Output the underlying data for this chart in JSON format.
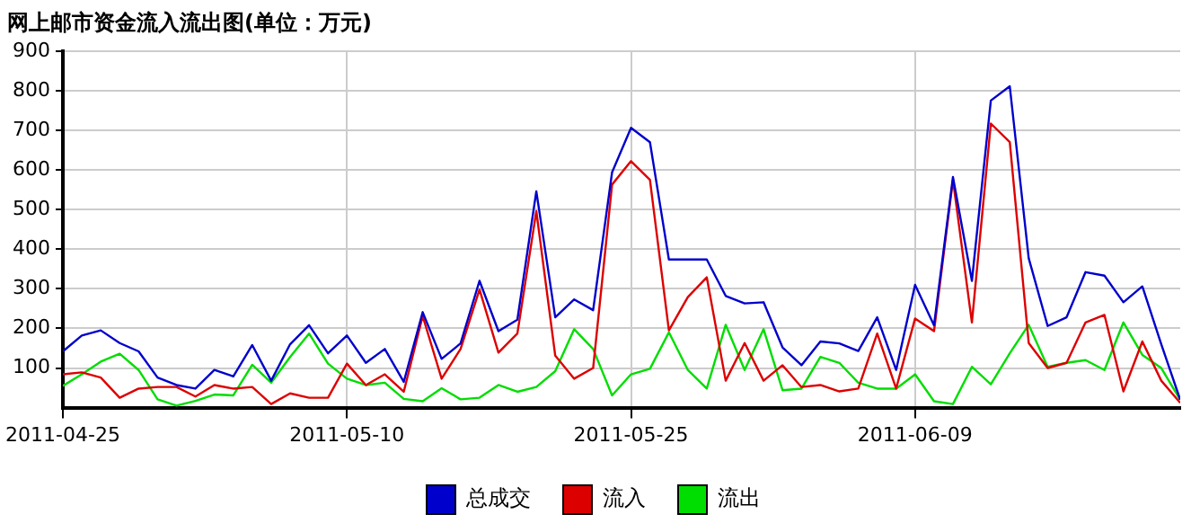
{
  "chart_data": {
    "type": "line",
    "title": "网上邮市资金流入流出图(单位：万元)",
    "x": [
      "2011-04-25",
      "2011-04-26",
      "2011-04-27",
      "2011-04-28",
      "2011-04-29",
      "2011-04-30",
      "2011-05-01",
      "2011-05-02",
      "2011-05-03",
      "2011-05-04",
      "2011-05-05",
      "2011-05-06",
      "2011-05-07",
      "2011-05-08",
      "2011-05-09",
      "2011-05-10",
      "2011-05-11",
      "2011-05-12",
      "2011-05-13",
      "2011-05-14",
      "2011-05-15",
      "2011-05-16",
      "2011-05-17",
      "2011-05-18",
      "2011-05-19",
      "2011-05-20",
      "2011-05-21",
      "2011-05-22",
      "2011-05-23",
      "2011-05-24",
      "2011-05-25",
      "2011-05-26",
      "2011-05-27",
      "2011-05-28",
      "2011-05-29",
      "2011-05-30",
      "2011-05-31",
      "2011-06-01",
      "2011-06-02",
      "2011-06-03",
      "2011-06-04",
      "2011-06-05",
      "2011-06-06",
      "2011-06-07",
      "2011-06-08",
      "2011-06-09",
      "2011-06-10",
      "2011-06-11",
      "2011-06-12",
      "2011-06-13",
      "2011-06-14",
      "2011-06-15",
      "2011-06-16",
      "2011-06-17",
      "2011-06-18",
      "2011-06-19",
      "2011-06-20",
      "2011-06-21",
      "2011-06-22",
      "2011-06-23"
    ],
    "series": [
      {
        "name": "总成交",
        "color": "#0000cc",
        "values": [
          142,
          182,
          195,
          163,
          142,
          76,
          57,
          48,
          95,
          79,
          158,
          68,
          160,
          208,
          137,
          182,
          113,
          148,
          65,
          241,
          123,
          162,
          320,
          193,
          222,
          546,
          228,
          273,
          246,
          594,
          706,
          670,
          374,
          374,
          374,
          282,
          263,
          266,
          152,
          107,
          167,
          162,
          143,
          228,
          95,
          310,
          208,
          582,
          320,
          775,
          811,
          377,
          206,
          228,
          342,
          333,
          266,
          306,
          160,
          20
        ]
      },
      {
        "name": "流入",
        "color": "#dd0000",
        "values": [
          84,
          89,
          76,
          25,
          48,
          52,
          52,
          28,
          57,
          48,
          52,
          9,
          36,
          25,
          25,
          111,
          57,
          84,
          40,
          231,
          73,
          148,
          298,
          139,
          187,
          496,
          131,
          73,
          100,
          563,
          622,
          575,
          195,
          279,
          329,
          68,
          163,
          68,
          107,
          52,
          57,
          41,
          48,
          187,
          48,
          225,
          193,
          575,
          215,
          717,
          670,
          163,
          100,
          113,
          215,
          234,
          41,
          167,
          68,
          12
        ]
      },
      {
        "name": "流出",
        "color": "#00dd00",
        "values": [
          55,
          84,
          116,
          136,
          95,
          21,
          5,
          17,
          33,
          31,
          108,
          63,
          128,
          187,
          111,
          73,
          57,
          63,
          22,
          16,
          49,
          21,
          25,
          57,
          40,
          52,
          92,
          198,
          148,
          31,
          84,
          98,
          190,
          95,
          48,
          209,
          95,
          198,
          44,
          48,
          128,
          113,
          63,
          48,
          48,
          84,
          16,
          9,
          103,
          59,
          137,
          209,
          103,
          113,
          120,
          95,
          215,
          133,
          100,
          20
        ]
      }
    ],
    "xlim": [
      "2011-04-25",
      "2011-06-23"
    ],
    "xticks": [
      "2011-04-25",
      "2011-05-10",
      "2011-05-25",
      "2011-06-09"
    ],
    "ylim": [
      0,
      900
    ],
    "yticks": [
      100,
      200,
      300,
      400,
      500,
      600,
      700,
      800,
      900
    ],
    "grid": true,
    "legend": "bottom",
    "marker": "none",
    "line_style": "solid"
  }
}
